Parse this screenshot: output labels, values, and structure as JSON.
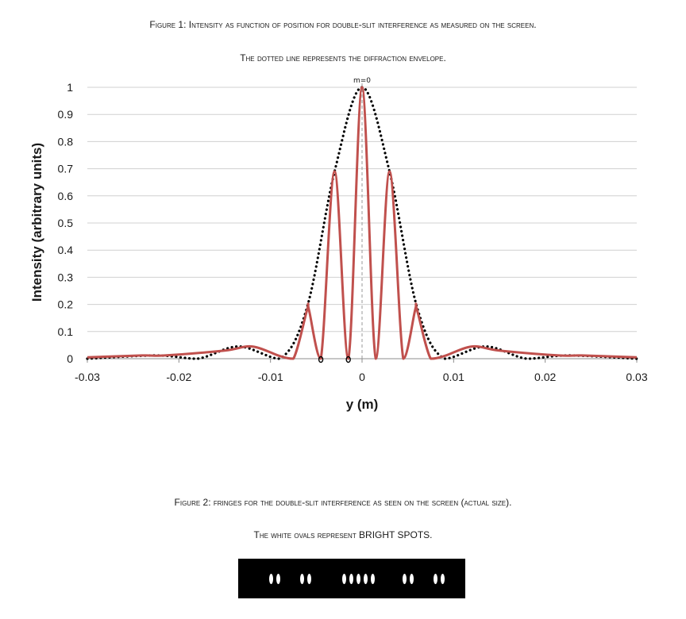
{
  "figure1": {
    "caption_line1": "Figure 1: Intensity as function of position for double-slit interference as measured on the screen.",
    "caption_line2": "The dotted line represents the diffraction envelope."
  },
  "figure2": {
    "caption_line1": "Figure 2: fringes for the double-slit interference as seen on the screen (actual size).",
    "caption_line2": "The white ovals represent BRIGHT SPOTS.",
    "bright_spot_groups": [
      2,
      2,
      5,
      2,
      2
    ]
  },
  "chart_data": {
    "type": "line",
    "title": "",
    "xlabel": "y (m)",
    "ylabel": "Intensity (arbitrary units)",
    "xlim": [
      -0.03,
      0.03
    ],
    "ylim": [
      0,
      1
    ],
    "x_ticks": [
      "-0.03",
      "-0.02",
      "-0.01",
      "0",
      "0.01",
      "0.02",
      "0.03"
    ],
    "y_ticks": [
      "0",
      "0.1",
      "0.2",
      "0.3",
      "0.4",
      "0.5",
      "0.6",
      "0.7",
      "0.8",
      "0.9",
      "1"
    ],
    "grid": "horizontal",
    "annotations": [
      {
        "text": "m=0",
        "x": 0,
        "y": 1.0
      }
    ],
    "series": [
      {
        "style": "solid",
        "color": "#c0504d",
        "x": [
          -0.03,
          -0.024,
          -0.0215,
          -0.015,
          -0.012,
          -0.009,
          -0.0075,
          -0.006,
          -0.0058,
          -0.0045,
          -0.003,
          -0.0015,
          0,
          0.0015,
          0.003,
          0.0045,
          0.0058,
          0.006,
          0.0075,
          0.009,
          0.012,
          0.015,
          0.0215,
          0.024,
          0.03
        ],
        "y": [
          0.005,
          0.012,
          0.012,
          0.03,
          0.045,
          0.01,
          0.0,
          0.18,
          0.18,
          0.0,
          0.69,
          0.0,
          1.0,
          0.0,
          0.69,
          0.0,
          0.18,
          0.18,
          0.0,
          0.01,
          0.045,
          0.03,
          0.012,
          0.012,
          0.005
        ]
      },
      {
        "style": "dotted",
        "color": "#000000",
        "x": [
          -0.03,
          -0.0225,
          -0.018,
          -0.0135,
          -0.009,
          -0.006,
          -0.003,
          0,
          0.003,
          0.006,
          0.009,
          0.0135,
          0.018,
          0.0225,
          0.03
        ],
        "y": [
          0.0,
          0.012,
          0.0,
          0.045,
          0.0,
          0.19,
          0.69,
          1.0,
          0.69,
          0.19,
          0.0,
          0.045,
          0.0,
          0.012,
          0.0
        ]
      }
    ]
  }
}
